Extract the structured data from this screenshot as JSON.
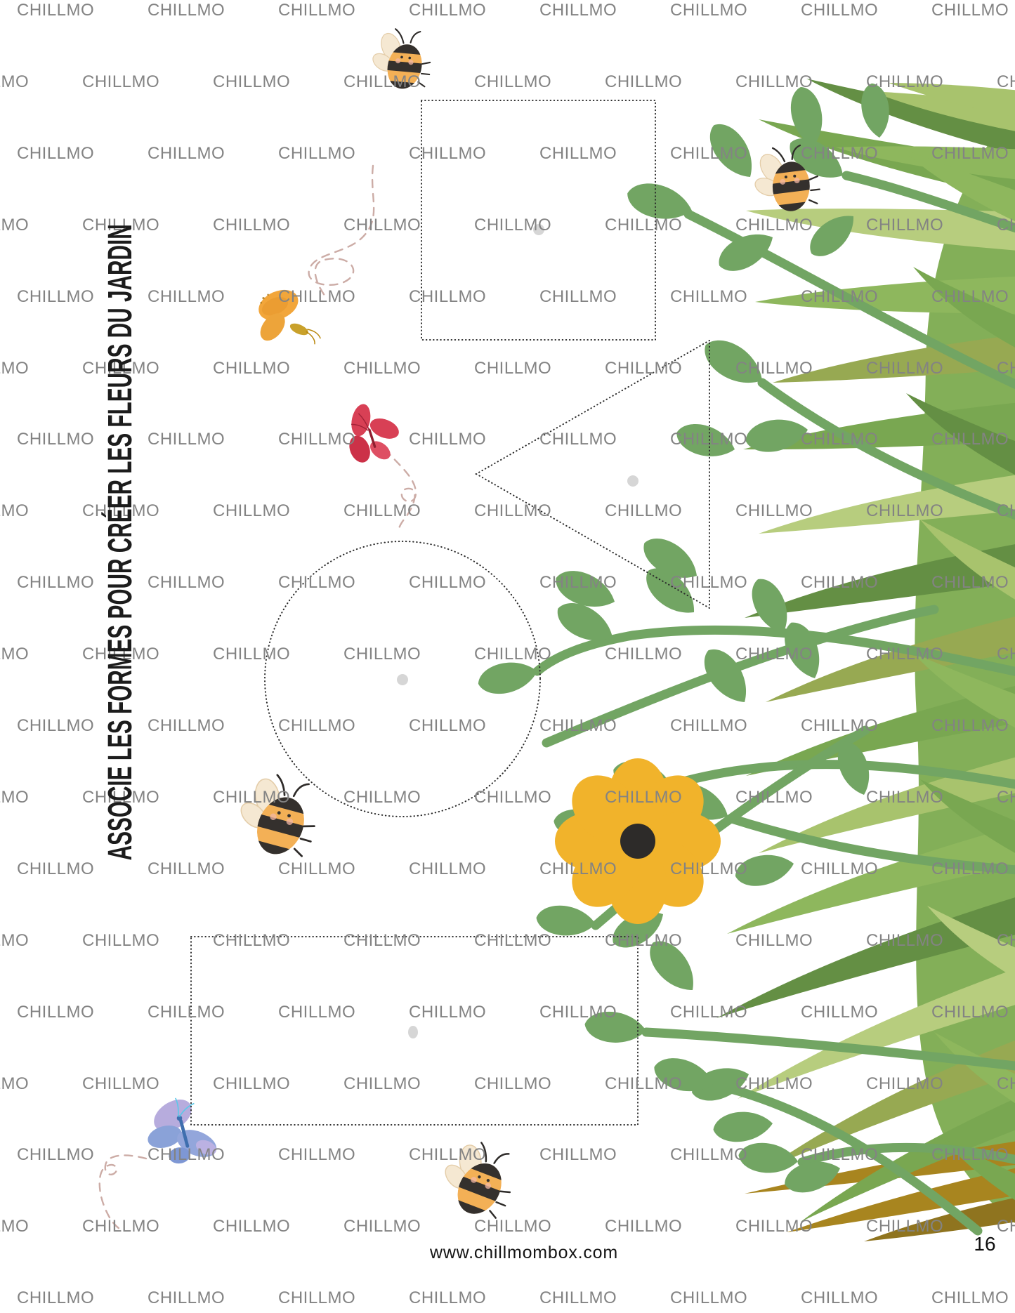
{
  "page": {
    "instruction_vertical": "ASSOCIE LES FORMES POUR CRÉER LES FLEURS DU JARDIN",
    "footer_url": "www.chillmombox.com",
    "page_number": "16"
  },
  "watermark": {
    "text": "CHILLMO",
    "color": "#838383"
  },
  "shapes": [
    {
      "type": "square",
      "label": "dotted square outline"
    },
    {
      "type": "triangle",
      "label": "dotted triangle outline"
    },
    {
      "type": "circle",
      "label": "dotted circle outline"
    },
    {
      "type": "rectangle",
      "label": "dotted rectangle outline"
    }
  ],
  "shape_outline_color": "#2b2b2b",
  "center_dot_color": "#d6d6d6",
  "decorations": {
    "bees": [
      "bee-top",
      "bee-top-right",
      "bee-middle-left",
      "bee-bottom"
    ],
    "bee_colors": {
      "body": "#f3b056",
      "stripe": "#34302d",
      "wing": "#f5e8d2"
    },
    "butterflies": [
      {
        "name": "orange-butterfly",
        "color": "#f2a63b"
      },
      {
        "name": "red-butterfly",
        "color": "#d84055"
      },
      {
        "name": "blue-butterfly",
        "color": "#93a6db"
      }
    ],
    "flower": {
      "name": "yellow-flower",
      "petal_color": "#f1b32b",
      "center_color": "#2d2b29"
    },
    "foliage": {
      "name": "garden-foliage",
      "branch_color": "#72a563",
      "backdrop_color": "#83af58",
      "grass_colors": [
        "#79a751",
        "#a8c36d",
        "#8eb75d",
        "#648f44",
        "#b7cd7e",
        "#97a952"
      ],
      "grass_accent_gold": "#a8851f"
    },
    "trail_color": "#c9a8a1"
  }
}
